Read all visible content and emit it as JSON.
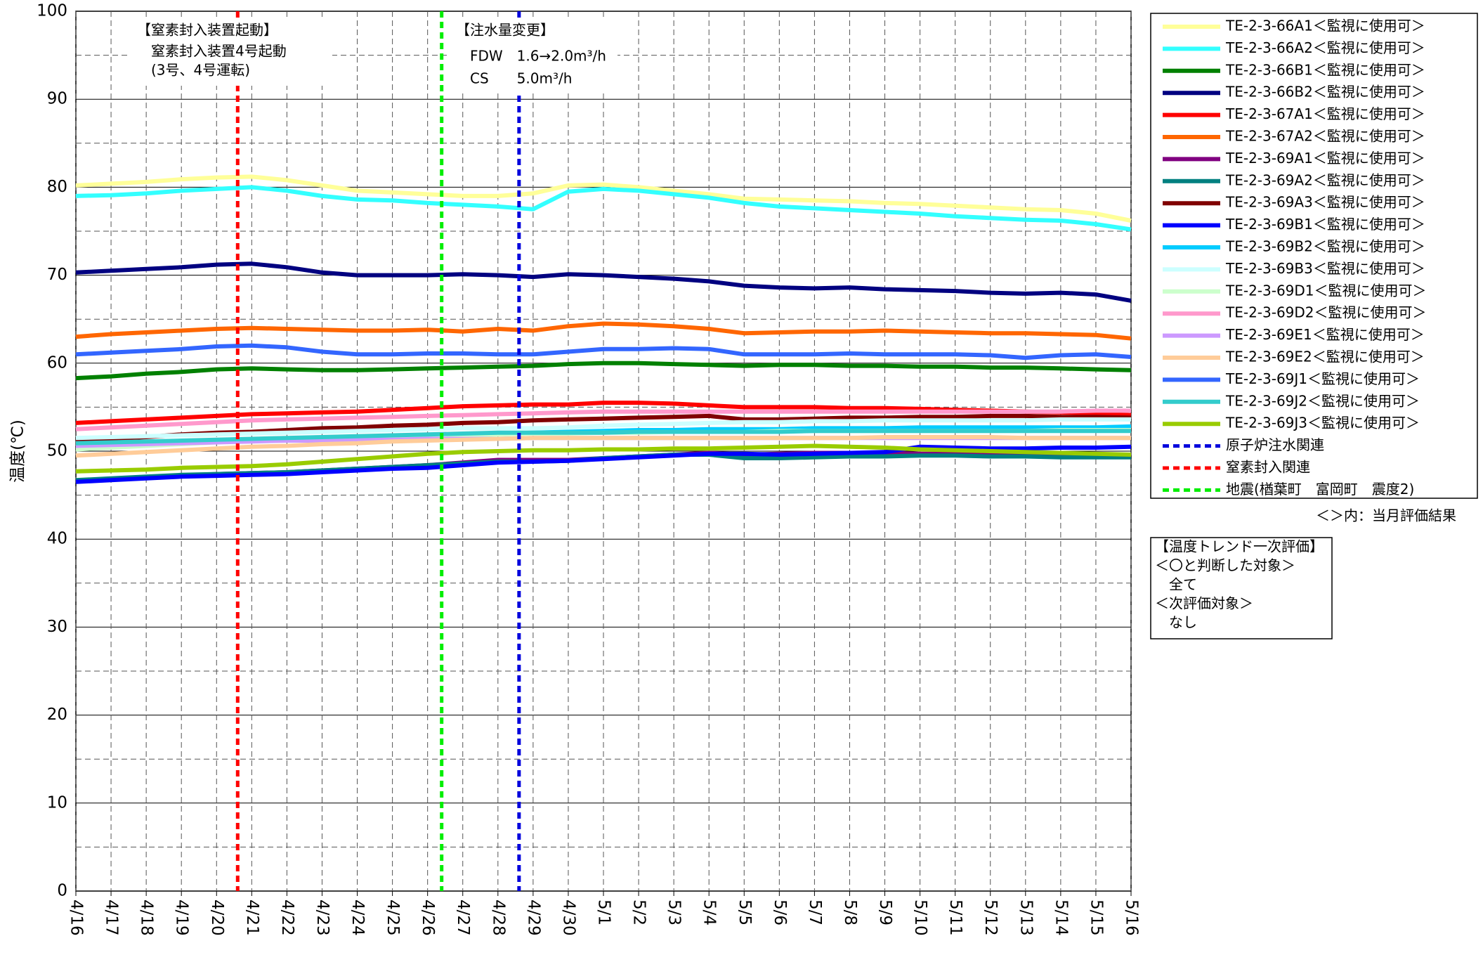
{
  "chart_data": {
    "type": "line",
    "y_label": "温度(℃)",
    "annotations": [
      "【窒素封入装置起動】",
      "窒素封入装置4号起動",
      "(3号、4号運転)",
      "【注水量変更】",
      "FDW　1.6→2.0m³/h",
      "CS　　5.0m³/h"
    ],
    "xlim": [
      0,
      30
    ],
    "xticks": [
      {
        "value": 0,
        "label": "4/16"
      },
      {
        "value": 1,
        "label": "4/17"
      },
      {
        "value": 2,
        "label": "4/18"
      },
      {
        "value": 3,
        "label": "4/19"
      },
      {
        "value": 4,
        "label": "4/20"
      },
      {
        "value": 5,
        "label": "4/21"
      },
      {
        "value": 6,
        "label": "4/22"
      },
      {
        "value": 7,
        "label": "4/23"
      },
      {
        "value": 8,
        "label": "4/24"
      },
      {
        "value": 9,
        "label": "4/25"
      },
      {
        "value": 10,
        "label": "4/26"
      },
      {
        "value": 11,
        "label": "4/27"
      },
      {
        "value": 12,
        "label": "4/28"
      },
      {
        "value": 13,
        "label": "4/29"
      },
      {
        "value": 14,
        "label": "4/30"
      },
      {
        "value": 15,
        "label": "5/1"
      },
      {
        "value": 16,
        "label": "5/2"
      },
      {
        "value": 17,
        "label": "5/3"
      },
      {
        "value": 18,
        "label": "5/4"
      },
      {
        "value": 19,
        "label": "5/5"
      },
      {
        "value": 20,
        "label": "5/6"
      },
      {
        "value": 21,
        "label": "5/7"
      },
      {
        "value": 22,
        "label": "5/8"
      },
      {
        "value": 23,
        "label": "5/9"
      },
      {
        "value": 24,
        "label": "5/10"
      },
      {
        "value": 25,
        "label": "5/11"
      },
      {
        "value": 26,
        "label": "5/12"
      },
      {
        "value": 27,
        "label": "5/13"
      },
      {
        "value": 28,
        "label": "5/14"
      },
      {
        "value": 29,
        "label": "5/15"
      },
      {
        "value": 30,
        "label": "5/16"
      }
    ],
    "ylim": [
      0,
      100
    ],
    "yticks": [
      0,
      10,
      20,
      30,
      40,
      50,
      60,
      70,
      80,
      90,
      100
    ],
    "y_minor_ticks": [
      5,
      15,
      25,
      35,
      45,
      55,
      65,
      75,
      85,
      95
    ],
    "grid": true,
    "x": [
      0,
      1,
      2,
      3,
      4,
      5,
      6,
      7,
      8,
      9,
      10,
      11,
      12,
      13,
      14,
      15,
      16,
      17,
      18,
      19,
      20,
      21,
      22,
      23,
      24,
      25,
      26,
      27,
      28,
      29,
      30
    ],
    "series": [
      {
        "name": "TE-2-3-66A1＜監視に使用可＞",
        "color": "#ffff99",
        "values": [
          80.2,
          80.4,
          80.6,
          80.9,
          81.1,
          81.2,
          80.8,
          80.2,
          79.6,
          79.4,
          79.2,
          79.0,
          79.0,
          79.3,
          80.2,
          80.3,
          80.0,
          79.6,
          79.2,
          78.7,
          78.6,
          78.5,
          78.4,
          78.2,
          78.1,
          77.9,
          77.7,
          77.5,
          77.4,
          77.0,
          76.2
        ]
      },
      {
        "name": "TE-2-3-66A2＜監視に使用可＞",
        "color": "#33ffff",
        "values": [
          79.0,
          79.1,
          79.3,
          79.6,
          79.8,
          80.0,
          79.6,
          79.0,
          78.6,
          78.5,
          78.2,
          78.0,
          77.8,
          77.5,
          79.5,
          79.8,
          79.6,
          79.2,
          78.8,
          78.2,
          77.8,
          77.6,
          77.4,
          77.2,
          77.0,
          76.7,
          76.5,
          76.3,
          76.2,
          75.8,
          75.2
        ]
      },
      {
        "name": "TE-2-3-66B1＜監視に使用可＞",
        "color": "#008000",
        "values": [
          58.3,
          58.5,
          58.8,
          59.0,
          59.3,
          59.4,
          59.3,
          59.2,
          59.2,
          59.3,
          59.4,
          59.5,
          59.6,
          59.7,
          59.9,
          60.0,
          60.0,
          59.9,
          59.8,
          59.7,
          59.8,
          59.8,
          59.7,
          59.7,
          59.6,
          59.6,
          59.5,
          59.5,
          59.4,
          59.3,
          59.2
        ]
      },
      {
        "name": "TE-2-3-66B2＜監視に使用可＞",
        "color": "#000080",
        "values": [
          70.3,
          70.5,
          70.7,
          70.9,
          71.2,
          71.3,
          70.9,
          70.3,
          70.0,
          70.0,
          70.0,
          70.1,
          70.0,
          69.8,
          70.1,
          70.0,
          69.8,
          69.6,
          69.3,
          68.8,
          68.6,
          68.5,
          68.6,
          68.4,
          68.3,
          68.2,
          68.0,
          67.9,
          68.0,
          67.8,
          67.1
        ]
      },
      {
        "name": "TE-2-3-67A1＜監視に使用可＞",
        "color": "#ff0000",
        "values": [
          53.2,
          53.4,
          53.6,
          53.8,
          54.0,
          54.2,
          54.3,
          54.4,
          54.5,
          54.7,
          54.9,
          55.1,
          55.2,
          55.3,
          55.3,
          55.5,
          55.5,
          55.4,
          55.2,
          55.0,
          55.0,
          55.0,
          54.9,
          54.9,
          54.8,
          54.7,
          54.6,
          54.5,
          54.4,
          54.3,
          54.1
        ]
      },
      {
        "name": "TE-2-3-67A2＜監視に使用可＞",
        "color": "#ff6600",
        "values": [
          63.0,
          63.3,
          63.5,
          63.7,
          63.9,
          64.0,
          63.9,
          63.8,
          63.7,
          63.7,
          63.8,
          63.6,
          63.9,
          63.7,
          64.2,
          64.5,
          64.4,
          64.2,
          63.9,
          63.4,
          63.5,
          63.6,
          63.6,
          63.7,
          63.6,
          63.5,
          63.4,
          63.4,
          63.3,
          63.2,
          62.8
        ]
      },
      {
        "name": "TE-2-3-69A1＜監視に使用可＞",
        "color": "#800080",
        "values": [
          46.6,
          46.8,
          47.0,
          47.2,
          47.4,
          47.5,
          47.6,
          47.8,
          48.0,
          48.2,
          48.4,
          48.7,
          49.0,
          49.0,
          49.0,
          49.2,
          49.4,
          49.6,
          49.8,
          49.6,
          49.7,
          49.8,
          49.8,
          49.8,
          49.7,
          49.7,
          49.7,
          49.6,
          49.6,
          49.6,
          49.6
        ]
      },
      {
        "name": "TE-2-3-69A2＜監視に使用可＞",
        "color": "#008080",
        "values": [
          46.7,
          46.9,
          47.1,
          47.3,
          47.4,
          47.5,
          47.6,
          47.8,
          48.0,
          48.2,
          48.4,
          48.6,
          48.8,
          48.8,
          48.9,
          49.2,
          49.4,
          49.6,
          49.6,
          49.2,
          49.2,
          49.3,
          49.4,
          49.4,
          49.5,
          49.5,
          49.4,
          49.4,
          49.3,
          49.3,
          49.3
        ]
      },
      {
        "name": "TE-2-3-69A3＜監視に使用可＞",
        "color": "#800000",
        "values": [
          51.2,
          51.4,
          51.6,
          51.9,
          52.1,
          52.2,
          52.4,
          52.6,
          52.7,
          52.9,
          53.0,
          53.2,
          53.3,
          53.5,
          53.6,
          53.7,
          53.8,
          53.9,
          54.0,
          53.6,
          53.6,
          53.7,
          53.8,
          53.8,
          53.9,
          53.9,
          54.0,
          54.0,
          53.9,
          53.9,
          53.8
        ]
      },
      {
        "name": "TE-2-3-69B1＜監視に使用可＞",
        "color": "#0000ff",
        "values": [
          46.5,
          46.7,
          46.9,
          47.1,
          47.2,
          47.3,
          47.4,
          47.6,
          47.8,
          48.0,
          48.1,
          48.4,
          48.7,
          48.8,
          48.9,
          49.1,
          49.3,
          49.5,
          49.7,
          49.7,
          49.6,
          49.7,
          49.8,
          49.9,
          50.5,
          50.4,
          50.3,
          50.3,
          50.4,
          50.4,
          50.5
        ]
      },
      {
        "name": "TE-2-3-69B2＜監視に使用可＞",
        "color": "#00ccff",
        "values": [
          50.8,
          50.9,
          51.0,
          51.1,
          51.2,
          51.3,
          51.4,
          51.5,
          51.6,
          51.7,
          51.8,
          51.9,
          52.0,
          52.1,
          52.2,
          52.3,
          52.4,
          52.4,
          52.5,
          52.5,
          52.5,
          52.6,
          52.6,
          52.6,
          52.7,
          52.7,
          52.7,
          52.7,
          52.7,
          52.7,
          52.8
        ]
      },
      {
        "name": "TE-2-3-69B3＜監視に使用可＞",
        "color": "#ccffff",
        "values": [
          51.5,
          51.6,
          51.7,
          51.8,
          51.9,
          52.0,
          52.1,
          52.2,
          52.3,
          52.4,
          52.5,
          52.6,
          52.6,
          52.6,
          52.7,
          52.9,
          53.0,
          53.1,
          53.2,
          53.3,
          53.3,
          53.4,
          53.4,
          53.5,
          53.5,
          53.5,
          53.5,
          53.5,
          53.6,
          53.6,
          53.6
        ]
      },
      {
        "name": "TE-2-3-69D1＜監視に使用可＞",
        "color": "#ccffcc",
        "values": [
          50.2,
          50.4,
          50.6,
          50.8,
          51.0,
          51.2,
          51.3,
          51.4,
          51.5,
          51.6,
          51.7,
          51.8,
          51.9,
          52.0,
          52.0,
          52.1,
          52.1,
          52.2,
          52.2,
          52.2,
          52.3,
          52.3,
          52.3,
          52.3,
          52.3,
          52.3,
          52.3,
          52.3,
          52.4,
          52.4,
          52.4
        ]
      },
      {
        "name": "TE-2-3-69D2＜監視に使用可＞",
        "color": "#ff99cc",
        "values": [
          52.5,
          52.7,
          52.9,
          53.1,
          53.3,
          53.5,
          53.6,
          53.7,
          53.8,
          53.9,
          54.0,
          54.1,
          54.2,
          54.3,
          54.4,
          54.5,
          54.5,
          54.5,
          54.5,
          54.5,
          54.5,
          54.5,
          54.5,
          54.5,
          54.5,
          54.5,
          54.5,
          54.5,
          54.5,
          54.6,
          54.6
        ]
      },
      {
        "name": "TE-2-3-69E1＜監視に使用可＞",
        "color": "#cc99ff",
        "values": [
          50.6,
          50.7,
          50.8,
          50.9,
          51.0,
          51.1,
          51.2,
          51.2,
          51.3,
          51.3,
          51.4,
          51.4,
          51.4,
          51.5,
          51.5,
          51.5,
          51.5,
          51.5,
          51.5,
          51.5,
          51.5,
          51.5,
          51.5,
          51.5,
          51.5,
          51.5,
          51.5,
          51.5,
          51.5,
          51.5,
          51.5
        ]
      },
      {
        "name": "TE-2-3-69E2＜監視に使用可＞",
        "color": "#ffcc99",
        "values": [
          49.5,
          49.7,
          49.9,
          50.1,
          50.3,
          50.5,
          50.6,
          50.8,
          50.9,
          51.1,
          51.2,
          51.3,
          51.4,
          51.5,
          51.5,
          51.5,
          51.5,
          51.5,
          51.5,
          51.5,
          51.5,
          51.5,
          51.5,
          51.6,
          51.6,
          51.6,
          51.6,
          51.5,
          51.5,
          51.5,
          51.5
        ]
      },
      {
        "name": "TE-2-3-69J1＜監視に使用可＞",
        "color": "#3366ff",
        "values": [
          61.0,
          61.2,
          61.4,
          61.6,
          61.9,
          62.0,
          61.8,
          61.3,
          61.0,
          61.0,
          61.1,
          61.1,
          61.0,
          61.0,
          61.3,
          61.6,
          61.6,
          61.7,
          61.6,
          61.0,
          61.0,
          61.0,
          61.1,
          61.0,
          61.0,
          61.0,
          60.9,
          60.6,
          60.9,
          61.0,
          60.7
        ]
      },
      {
        "name": "TE-2-3-69J2＜監視に使用可＞",
        "color": "#33cccc",
        "values": [
          50.9,
          51.0,
          51.1,
          51.2,
          51.3,
          51.4,
          51.5,
          51.6,
          51.7,
          51.8,
          51.9,
          52.0,
          52.1,
          52.1,
          52.1,
          52.1,
          52.2,
          52.2,
          52.2,
          52.2,
          52.2,
          52.3,
          52.3,
          52.3,
          52.3,
          52.3,
          52.3,
          52.3,
          52.3,
          52.3,
          52.3
        ]
      },
      {
        "name": "TE-2-3-69J3＜監視に使用可＞",
        "color": "#99cc00",
        "values": [
          47.7,
          47.8,
          47.9,
          48.1,
          48.2,
          48.3,
          48.5,
          48.8,
          49.1,
          49.4,
          49.7,
          49.9,
          50.0,
          50.1,
          50.1,
          50.2,
          50.2,
          50.3,
          50.3,
          50.4,
          50.5,
          50.6,
          50.5,
          50.4,
          50.2,
          50.1,
          50.0,
          49.9,
          49.8,
          49.7,
          49.6
        ]
      }
    ],
    "events": [
      {
        "name": "原子炉注水関連",
        "color": "#0000dd",
        "x": 12.6
      },
      {
        "name": "窒素封入関連",
        "color": "#ff0000",
        "x": 4.6
      },
      {
        "name": "地震(楢葉町　富岡町　震度2)",
        "color": "#00ee00",
        "x": 10.4
      }
    ],
    "legend_note": "＜＞内：当月評価結果",
    "evaluation": [
      "【温度トレンド一次評価】",
      "＜〇と判断した対象＞",
      "全て",
      "＜次評価対象＞",
      "なし"
    ]
  }
}
